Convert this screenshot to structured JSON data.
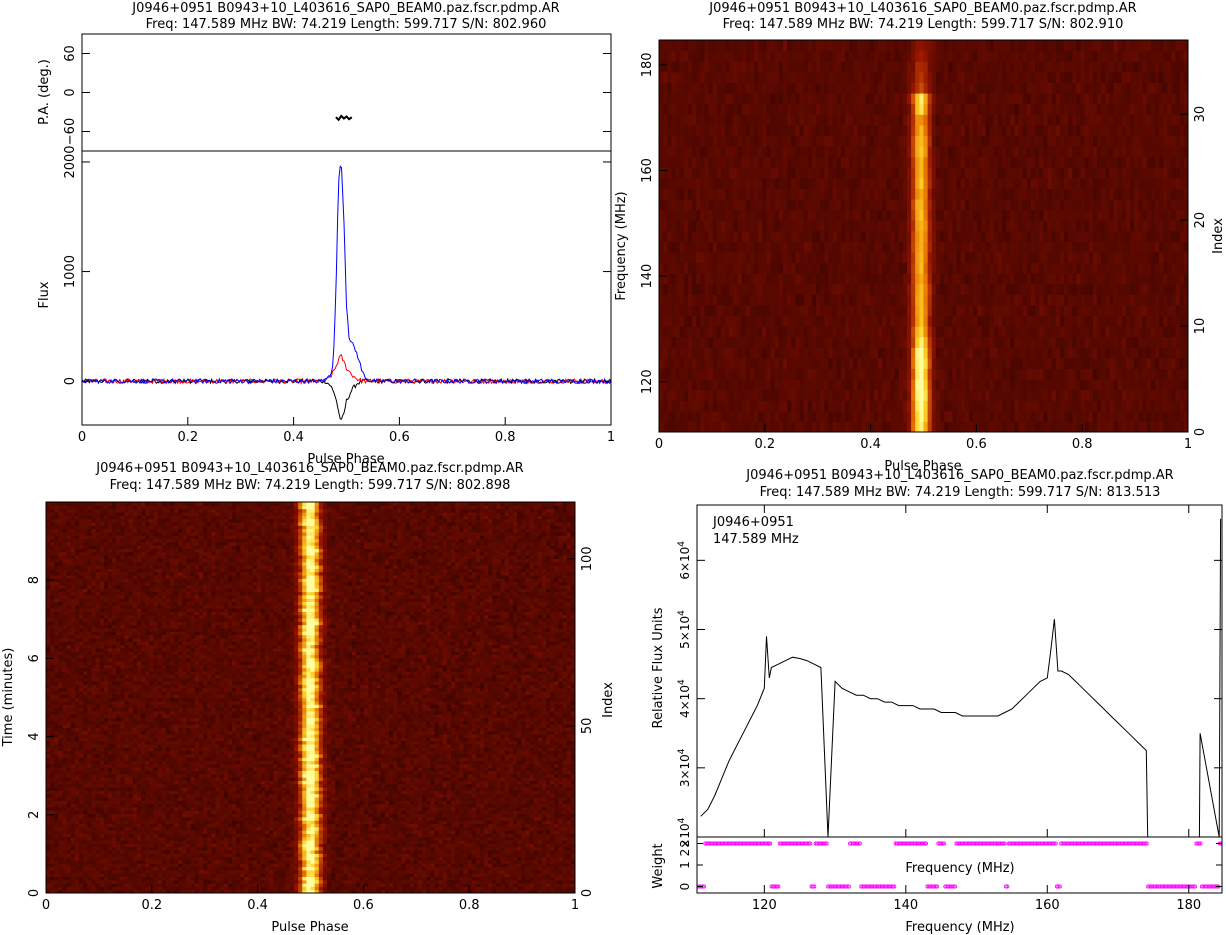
{
  "panels": {
    "profile": {
      "title": "J0946+0951  B0943+10_L403616_SAP0_BEAM0.paz.fscr.pdmp.AR",
      "subtitle": "Freq: 147.589 MHz BW: 74.219 Length: 599.717 S/N: 802.960",
      "pa_ylabel": "P.A. (deg.)",
      "flux_ylabel": "Flux",
      "xlabel": "Pulse Phase"
    },
    "freqphase": {
      "title": "J0946+0951  B0943+10_L403616_SAP0_BEAM0.paz.fscr.pdmp.AR",
      "subtitle": "Freq: 147.589 MHz BW: 74.219 Length: 599.717 S/N: 802.910",
      "ylabel": "Frequency (MHz)",
      "ylabel_right": "Index",
      "xlabel": "Pulse Phase"
    },
    "timephase": {
      "title": "J0946+0951  B0943+10_L403616_SAP0_BEAM0.paz.fscr.pdmp.AR",
      "subtitle": "Freq: 147.589 MHz BW: 74.219 Length: 599.717 S/N: 802.898",
      "ylabel": "Time (minutes)",
      "ylabel_right": "Index",
      "xlabel": "Pulse Phase"
    },
    "bandpass": {
      "title": "J0946+0951  B0943+10_L403616_SAP0_BEAM0.paz.fscr.pdmp.AR",
      "subtitle": "Freq: 147.589 MHz BW: 74.219 Length: 599.717 S/N: 813.513",
      "legend_line1": "J0946+0951",
      "legend_line2": "147.589 MHz",
      "ylabel": "Relative Flux Units",
      "weight_ylabel": "Weight",
      "inner_xlabel": "Frequency (MHz)",
      "xlabel": "Frequency (MHz)"
    }
  },
  "colors": {
    "total_intensity": "#000000",
    "linear_pol": "#ff0000",
    "circular_pol": "#0000ff",
    "heat_low": "#2a0000",
    "heat_high": "#ffffa0",
    "weight_marker": "#ff00ff"
  },
  "chart_data": [
    {
      "id": "profile",
      "type": "line",
      "x_range": [
        0,
        1
      ],
      "x_ticks": [
        0,
        0.2,
        0.4,
        0.6,
        0.8,
        1
      ],
      "x_tick_labels": [
        "0",
        "0.2",
        "0.4",
        "0.6",
        "0.8",
        "1"
      ],
      "pa": {
        "ylim": [
          -90,
          90
        ],
        "y_ticks": [
          -60,
          0,
          60
        ],
        "y_tick_labels": [
          "−60",
          "0",
          "60"
        ],
        "x": [
          0.48,
          0.485,
          0.49,
          0.495,
          0.5,
          0.505,
          0.51
        ],
        "y": [
          -38,
          -42,
          -36,
          -40,
          -37,
          -41,
          -38
        ]
      },
      "flux": {
        "ylim": [
          -400,
          2100
        ],
        "y_ticks": [
          0,
          1000,
          2000
        ],
        "y_tick_labels": [
          "0",
          "1000",
          "2000"
        ],
        "series": [
          {
            "x": [
              0,
              0.45,
              0.46,
              0.47,
              0.475,
              0.48,
              0.485,
              0.49,
              0.495,
              0.5,
              0.505,
              0.51,
              0.52,
              0.53,
              0.54,
              0.55,
              1
            ],
            "y": [
              0,
              0,
              10,
              60,
              180,
              800,
              1850,
              2000,
              1500,
              700,
              400,
              350,
              250,
              80,
              10,
              0,
              0
            ]
          },
          {
            "x": [
              0,
              0.46,
              0.47,
              0.48,
              0.485,
              0.49,
              0.5,
              0.51,
              0.52,
              0.53,
              1
            ],
            "y": [
              0,
              0,
              40,
              130,
              200,
              230,
              120,
              60,
              20,
              0,
              0
            ]
          },
          {
            "x": [
              0,
              0.46,
              0.47,
              0.48,
              0.485,
              0.49,
              0.495,
              0.5,
              0.51,
              0.52,
              0.53,
              1
            ],
            "y": [
              0,
              0,
              -40,
              -150,
              -280,
              -370,
              -300,
              -180,
              -80,
              -20,
              0,
              0
            ]
          }
        ]
      }
    },
    {
      "id": "freqphase",
      "type": "heatmap",
      "x_range": [
        0,
        1
      ],
      "x_ticks": [
        0,
        0.2,
        0.4,
        0.6,
        0.8,
        1
      ],
      "x_tick_labels": [
        "0",
        "0.2",
        "0.4",
        "0.6",
        "0.8",
        "1"
      ],
      "y_range": [
        110.48,
        184.7
      ],
      "y_ticks": [
        120,
        140,
        160,
        180
      ],
      "y_tick_labels": [
        "120",
        "140",
        "160",
        "180"
      ],
      "right_range": [
        0,
        37
      ],
      "right_ticks": [
        0,
        10,
        20,
        30
      ],
      "right_tick_labels": [
        "0",
        "10",
        "20",
        "30"
      ],
      "pulse_center": 0.495,
      "pulse_width": 0.012,
      "channel_brightness": [
        0.85,
        0.9,
        0.95,
        1.0,
        0.98,
        0.92,
        1.0,
        0.95,
        0.85,
        0.75,
        0.7,
        0.72,
        0.7,
        0.68,
        0.66,
        0.65,
        0.65,
        0.66,
        0.65,
        0.7,
        0.68,
        0.67,
        0.66,
        0.68,
        0.7,
        0.68,
        0.72,
        0.7,
        0.66,
        0.6,
        0.75,
        0.85,
        0.4,
        0.35,
        0.3,
        0.25,
        0.2
      ]
    },
    {
      "id": "timephase",
      "type": "heatmap",
      "x_range": [
        0,
        1
      ],
      "x_ticks": [
        0,
        0.2,
        0.4,
        0.6,
        0.8,
        1
      ],
      "x_tick_labels": [
        "0",
        "0.2",
        "0.4",
        "0.6",
        "0.8",
        "1"
      ],
      "y_range": [
        0,
        9.996
      ],
      "y_ticks": [
        0,
        2,
        4,
        6,
        8
      ],
      "y_tick_labels": [
        "0",
        "2",
        "4",
        "6",
        "8"
      ],
      "right_range": [
        0,
        117
      ],
      "right_ticks": [
        0,
        50,
        100
      ],
      "right_tick_labels": [
        "0",
        "50",
        "100"
      ],
      "pulse_center": 0.5,
      "pulse_width": 0.013
    },
    {
      "id": "bandpass",
      "type": "line",
      "x_range": [
        110.48,
        184.7
      ],
      "x_ticks": [
        120,
        140,
        160,
        180
      ],
      "x_tick_labels": [
        "120",
        "140",
        "160",
        "180"
      ],
      "ylim": [
        20000,
        68000
      ],
      "y_ticks": [
        20000,
        30000,
        40000,
        50000,
        60000
      ],
      "y_tick_mantissas": [
        "2",
        "3",
        "4",
        "5",
        "6"
      ],
      "y_tick_base": "×10",
      "y_tick_exp": "4",
      "series": [
        {
          "x": [
            111,
            112,
            113,
            114,
            115,
            116,
            117,
            118,
            119,
            120,
            120.3,
            120.7,
            121,
            122,
            123,
            124,
            125,
            126,
            127,
            128,
            129,
            130,
            131,
            132,
            133,
            134,
            135,
            136,
            137,
            138,
            139,
            140,
            141,
            142,
            143,
            144,
            145,
            146,
            147,
            148,
            149,
            150,
            151,
            152,
            153,
            154,
            155,
            156,
            157,
            158,
            159,
            160,
            160.5,
            161,
            161.5,
            162,
            163,
            164,
            165,
            166,
            167,
            168,
            169,
            170,
            171,
            172,
            173,
            174,
            174.2,
            181.5,
            181.6,
            184.3,
            184.5
          ],
          "y": [
            23000,
            24000,
            26000,
            28500,
            31000,
            33000,
            35000,
            37000,
            39000,
            41500,
            49000,
            43000,
            44500,
            45000,
            45500,
            46000,
            45800,
            45500,
            45000,
            44500,
            0,
            42500,
            41500,
            41000,
            40500,
            40500,
            40000,
            40000,
            39500,
            39500,
            39000,
            39000,
            39000,
            38500,
            38500,
            38500,
            38000,
            38000,
            38000,
            37500,
            37500,
            37500,
            37500,
            37500,
            37500,
            38000,
            38500,
            39500,
            40500,
            41500,
            42500,
            43000,
            47000,
            51500,
            44000,
            44000,
            43500,
            42500,
            41500,
            40500,
            39500,
            38500,
            37500,
            36500,
            35500,
            34500,
            33500,
            32500,
            0,
            0,
            35000,
            0,
            66000
          ]
        }
      ],
      "weight": {
        "ylim": [
          -0.3,
          2.3
        ],
        "y_ticks": [
          0,
          1,
          2
        ],
        "y_tick_labels": [
          "0",
          "1",
          "2"
        ],
        "zero_ranges": [
          [
            110.5,
            111.6
          ],
          [
            121,
            122
          ],
          [
            126.5,
            127.2
          ],
          [
            129,
            132
          ],
          [
            133.5,
            138.5
          ],
          [
            143,
            144.5
          ],
          [
            145.5,
            147
          ],
          [
            154,
            154.5
          ],
          [
            161.2,
            161.8
          ],
          [
            174.2,
            181
          ],
          [
            181.8,
            184.2
          ]
        ]
      }
    }
  ]
}
